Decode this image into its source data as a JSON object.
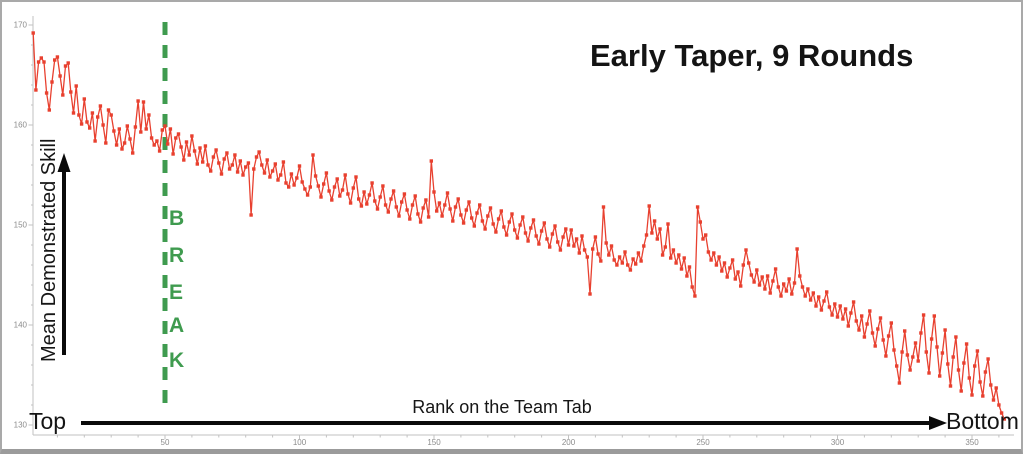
{
  "title": "Early Taper, 9 Rounds",
  "axis_end_labels": {
    "left": "Top",
    "right": "Bottom"
  },
  "break_label_letters": [
    "B",
    "R",
    "E",
    "A",
    "K"
  ],
  "colors": {
    "line": "#e8402f",
    "break_green": "#3f9b4f",
    "axis_gray": "#c2c2c2",
    "tick_text": "#8c8c8c",
    "arrow_black": "#0a0a0a"
  },
  "chart_data": {
    "type": "line",
    "title": "Early Taper, 9 Rounds",
    "xlabel": "Rank on the Team Tab",
    "ylabel": "Mean Demonstrated Skill",
    "x_tick_labels": [
      50,
      100,
      150,
      200,
      250,
      300,
      350
    ],
    "y_tick_labels": [
      170,
      160,
      150,
      140,
      130
    ],
    "xlim": [
      0,
      370
    ],
    "ylim": [
      129,
      171
    ],
    "grid": false,
    "legend": "none",
    "marker": "square",
    "line_color": "#e8402f",
    "break_line": {
      "x": 50,
      "label": "BREAK",
      "color": "#3f9b4f",
      "style": "dashed"
    },
    "x_start": 1,
    "x_step": 1,
    "values": [
      169.2,
      163.5,
      166.3,
      166.7,
      166.3,
      163.2,
      161.5,
      164.3,
      166.5,
      166.8,
      164.9,
      163.0,
      165.9,
      166.2,
      163.3,
      161.2,
      163.9,
      161.0,
      160.1,
      162.6,
      160.3,
      159.7,
      161.2,
      158.4,
      160.8,
      161.9,
      160.0,
      158.2,
      161.5,
      161.0,
      159.4,
      158.0,
      159.6,
      157.6,
      158.2,
      159.9,
      158.6,
      157.2,
      159.8,
      162.4,
      159.3,
      162.3,
      159.6,
      161.0,
      158.7,
      158.0,
      158.4,
      157.4,
      159.5,
      159.9,
      158.1,
      159.6,
      157.1,
      158.7,
      159.1,
      157.8,
      156.5,
      158.3,
      157.0,
      158.9,
      157.4,
      156.1,
      157.7,
      156.3,
      157.9,
      156.0,
      155.4,
      156.8,
      157.5,
      156.2,
      155.1,
      156.6,
      157.2,
      155.6,
      156.0,
      157.0,
      155.3,
      156.4,
      155.0,
      155.8,
      156.2,
      151.0,
      155.6,
      156.8,
      157.3,
      156.0,
      155.2,
      156.5,
      154.8,
      155.4,
      156.1,
      154.5,
      155.0,
      156.3,
      154.2,
      153.8,
      155.1,
      154.0,
      154.7,
      155.9,
      154.3,
      153.6,
      153.0,
      153.8,
      157.0,
      154.9,
      153.9,
      152.8,
      154.1,
      155.2,
      153.4,
      152.5,
      153.8,
      154.6,
      152.9,
      153.5,
      155.0,
      153.1,
      152.2,
      153.7,
      154.8,
      152.6,
      151.9,
      153.3,
      152.1,
      153.0,
      154.2,
      152.4,
      151.6,
      152.8,
      153.9,
      152.0,
      151.3,
      152.6,
      153.4,
      151.8,
      150.9,
      152.3,
      153.1,
      151.5,
      150.6,
      152.0,
      152.9,
      151.1,
      150.3,
      151.7,
      152.5,
      150.8,
      156.4,
      153.3,
      151.4,
      152.2,
      150.9,
      152.0,
      153.2,
      151.6,
      150.4,
      151.8,
      152.6,
      151.0,
      150.2,
      151.5,
      152.3,
      150.7,
      149.9,
      151.2,
      152.0,
      150.4,
      149.6,
      150.9,
      151.7,
      150.1,
      149.3,
      150.6,
      151.4,
      149.8,
      149.0,
      150.3,
      151.1,
      149.5,
      148.7,
      150.0,
      150.8,
      149.2,
      148.4,
      149.7,
      150.5,
      148.9,
      148.1,
      149.4,
      150.2,
      148.6,
      147.8,
      149.1,
      149.9,
      148.3,
      147.5,
      148.8,
      149.6,
      148.0,
      149.5,
      147.9,
      148.6,
      147.2,
      148.9,
      147.5,
      146.8,
      143.1,
      147.6,
      148.8,
      147.1,
      146.4,
      151.8,
      148.2,
      147.0,
      147.9,
      146.5,
      146.0,
      146.8,
      146.2,
      147.3,
      146.0,
      145.5,
      146.6,
      146.1,
      147.2,
      146.4,
      147.9,
      149.0,
      151.9,
      149.2,
      150.4,
      148.6,
      149.6,
      147.0,
      147.8,
      150.1,
      146.7,
      147.5,
      146.2,
      147.0,
      145.6,
      146.7,
      144.9,
      145.8,
      143.8,
      142.9,
      151.8,
      150.3,
      148.6,
      149.0,
      147.3,
      146.5,
      147.2,
      146.0,
      146.8,
      145.4,
      146.2,
      144.8,
      145.7,
      146.5,
      144.6,
      145.3,
      143.9,
      146.0,
      147.5,
      146.2,
      145.0,
      144.3,
      145.5,
      144.0,
      144.8,
      143.6,
      144.9,
      143.2,
      144.4,
      145.6,
      143.8,
      142.9,
      144.1,
      143.4,
      144.6,
      143.1,
      144.2,
      147.6,
      144.9,
      143.8,
      142.9,
      143.6,
      142.5,
      143.2,
      141.9,
      142.8,
      141.5,
      142.4,
      143.3,
      141.8,
      141.0,
      142.1,
      140.8,
      141.9,
      140.6,
      141.6,
      139.9,
      141.2,
      142.3,
      140.4,
      139.5,
      140.9,
      138.8,
      140.1,
      141.4,
      139.2,
      137.9,
      139.6,
      140.7,
      138.5,
      136.9,
      138.9,
      140.2,
      137.5,
      135.9,
      134.2,
      137.3,
      139.4,
      137.0,
      135.5,
      136.8,
      138.2,
      136.4,
      139.2,
      141.0,
      137.3,
      135.2,
      138.6,
      140.9,
      137.8,
      134.9,
      137.2,
      139.5,
      136.1,
      133.9,
      136.8,
      138.8,
      135.5,
      133.4,
      136.2,
      138.1,
      134.7,
      133.0,
      135.9,
      137.4,
      134.3,
      132.9,
      135.3,
      136.6,
      134.0,
      132.5,
      133.7,
      132.0,
      131.2,
      130.6
    ]
  }
}
